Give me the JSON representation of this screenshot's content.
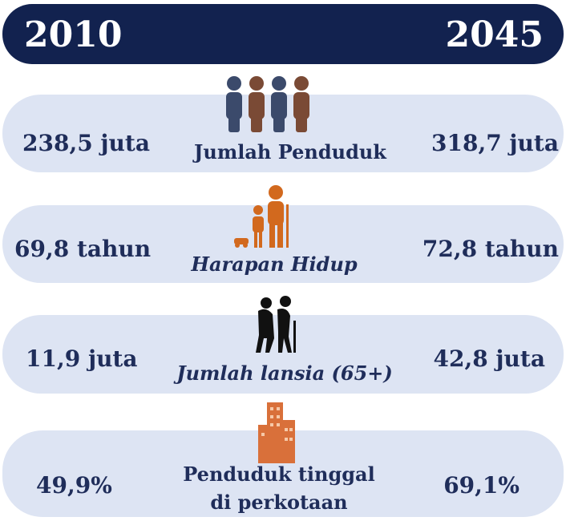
{
  "header": {
    "left_year": "2010",
    "right_year": "2045"
  },
  "rows": [
    {
      "left": "238,5 juta",
      "label": [
        "Jumlah Penduduk"
      ],
      "right": "318,7 juta"
    },
    {
      "left": "69,8 tahun",
      "label": [
        "Harapan Hidup"
      ],
      "right": "72,8 tahun"
    },
    {
      "left": "11,9 juta",
      "label": [
        "Jumlah lansia (65+)"
      ],
      "right": "42,8 juta"
    },
    {
      "left": "49,9%",
      "label": [
        "Penduduk tinggal",
        "di perkotaan"
      ],
      "right": "69,1%"
    }
  ]
}
